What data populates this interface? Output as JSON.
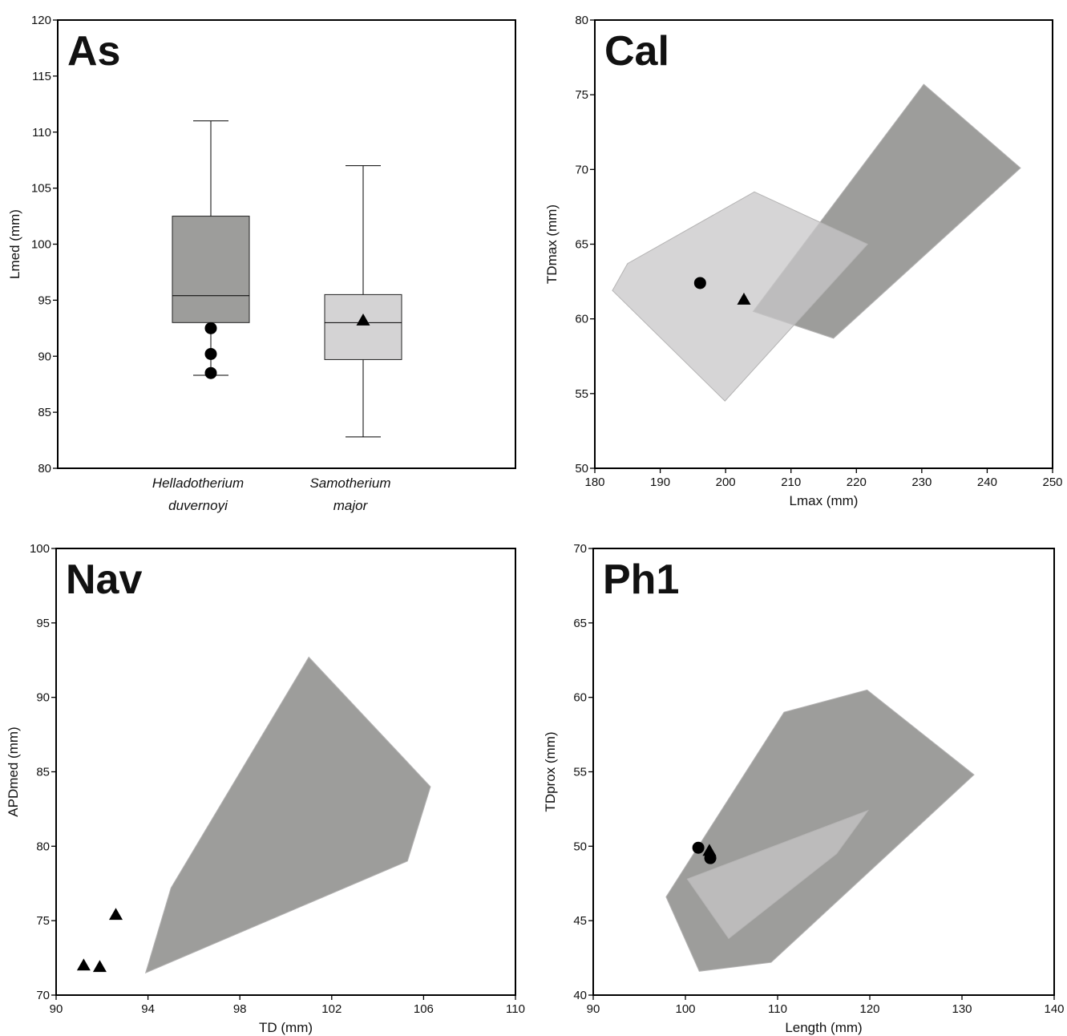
{
  "chart_data": [
    {
      "panel": "As",
      "type": "box",
      "title": "As",
      "ylabel": "Lmed (mm)",
      "xlabel": "",
      "ylim": [
        80,
        120
      ],
      "yticks": [
        80,
        85,
        90,
        95,
        100,
        105,
        110,
        115,
        120
      ],
      "categories": [
        {
          "line1": "Helladotherium",
          "line2": "duvernoyi",
          "min": 88.3,
          "q1": 93.0,
          "median": 95.4,
          "q3": 102.5,
          "max": 111.0,
          "fill": "#9d9d9b"
        },
        {
          "line1": "Samotherium",
          "line2": "major",
          "min": 82.8,
          "q1": 89.7,
          "median": 93.0,
          "q3": 95.5,
          "max": 107.0,
          "fill": "#d4d3d4"
        }
      ],
      "points": [
        {
          "cat": 0,
          "y": 92.5,
          "marker": "circle"
        },
        {
          "cat": 0,
          "y": 90.2,
          "marker": "circle"
        },
        {
          "cat": 0,
          "y": 88.5,
          "marker": "circle"
        },
        {
          "cat": 1,
          "y": 93.2,
          "marker": "triangle"
        }
      ]
    },
    {
      "panel": "Cal",
      "type": "scatter",
      "title": "Cal",
      "xlabel": "Lmax (mm)",
      "ylabel": "TDmax (mm)",
      "xlim": [
        180,
        250
      ],
      "ylim": [
        50,
        80
      ],
      "xticks": [
        180,
        190,
        200,
        210,
        220,
        230,
        240,
        250
      ],
      "yticks": [
        50,
        55,
        60,
        65,
        70,
        75,
        80
      ],
      "polygons": [
        {
          "fill": "#9d9d9b",
          "opacity": 1.0,
          "points": [
            [
              204.2,
              60.5
            ],
            [
              230.3,
              75.7
            ],
            [
              245.1,
              70.1
            ],
            [
              216.5,
              58.7
            ]
          ]
        },
        {
          "fill": "#c8c7c8",
          "opacity": 0.75,
          "points": [
            [
              182.7,
              61.9
            ],
            [
              185.0,
              63.7
            ],
            [
              204.4,
              68.5
            ],
            [
              221.7,
              65.0
            ],
            [
              199.9,
              54.5
            ]
          ]
        }
      ],
      "points": [
        {
          "x": 196.1,
          "y": 62.4,
          "marker": "circle"
        },
        {
          "x": 202.8,
          "y": 61.3,
          "marker": "triangle"
        }
      ]
    },
    {
      "panel": "Nav",
      "type": "scatter",
      "title": "Nav",
      "xlabel": "TD (mm)",
      "ylabel": "APDmed (mm)",
      "xlim": [
        90,
        110
      ],
      "ylim": [
        70,
        100
      ],
      "xticks": [
        90,
        94,
        98,
        102,
        106,
        110
      ],
      "yticks": [
        70,
        75,
        80,
        85,
        90,
        95,
        100
      ],
      "polygons": [
        {
          "fill": "#9d9d9b",
          "opacity": 1.0,
          "points": [
            [
              93.9,
              71.5
            ],
            [
              95.0,
              77.2
            ],
            [
              101.0,
              92.7
            ],
            [
              106.3,
              84.0
            ],
            [
              105.3,
              79.0
            ]
          ]
        }
      ],
      "points": [
        {
          "x": 91.2,
          "y": 72.0,
          "marker": "triangle"
        },
        {
          "x": 91.9,
          "y": 71.9,
          "marker": "triangle"
        },
        {
          "x": 92.6,
          "y": 75.4,
          "marker": "triangle"
        }
      ]
    },
    {
      "panel": "Ph1",
      "type": "scatter",
      "title": "Ph1",
      "xlabel": "Length (mm)",
      "ylabel": "TDprox (mm)",
      "xlim": [
        90,
        140
      ],
      "ylim": [
        40,
        70
      ],
      "xticks": [
        90,
        100,
        110,
        120,
        130,
        140
      ],
      "yticks": [
        40,
        45,
        50,
        55,
        60,
        65,
        70
      ],
      "polygons": [
        {
          "fill": "#9d9d9b",
          "opacity": 1.0,
          "points": [
            [
              97.9,
              46.6
            ],
            [
              110.7,
              59.0
            ],
            [
              119.7,
              60.5
            ],
            [
              131.3,
              54.8
            ],
            [
              109.3,
              42.2
            ],
            [
              101.5,
              41.6
            ]
          ]
        },
        {
          "fill": "#bcbbbb",
          "opacity": 1.0,
          "points": [
            [
              100.2,
              47.8
            ],
            [
              119.8,
              52.4
            ],
            [
              116.4,
              49.5
            ],
            [
              104.7,
              43.8
            ]
          ]
        }
      ],
      "points": [
        {
          "x": 101.4,
          "y": 49.9,
          "marker": "circle"
        },
        {
          "x": 102.6,
          "y": 49.7,
          "marker": "triangle"
        },
        {
          "x": 102.7,
          "y": 49.2,
          "marker": "circle"
        }
      ]
    }
  ]
}
